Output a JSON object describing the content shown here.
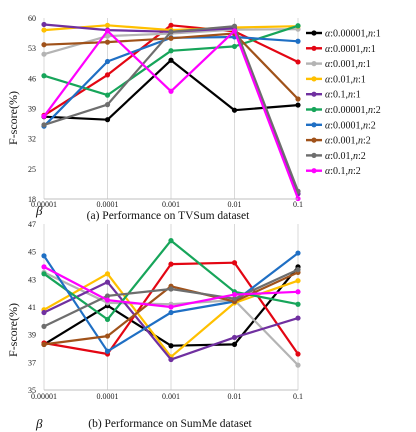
{
  "chart_data": [
    {
      "type": "line",
      "caption": "(a) Performance on TVSum dataset",
      "ylabel": "F-score(%)",
      "x_symbol": "β",
      "x": [
        "0.00001",
        "0.0001",
        "0.001",
        "0.01",
        "0.1"
      ],
      "yticks": [
        18,
        25,
        32,
        39,
        46,
        53,
        60
      ],
      "ylim": [
        18,
        60
      ],
      "grid": "vertical",
      "legend": "right",
      "series": [
        {
          "name": "α:0.00001,n:1",
          "color": "#000000",
          "values": [
            37.1,
            36.4,
            50.2,
            38.6,
            39.8
          ]
        },
        {
          "name": "α:0.0001,n:1",
          "color": "#e30613",
          "values": [
            37.4,
            46.8,
            58.3,
            56.9,
            49.8
          ]
        },
        {
          "name": "α:0.001,n:1",
          "color": "#b4b4b4",
          "values": [
            51.6,
            55.8,
            56.4,
            57.3,
            57.4
          ]
        },
        {
          "name": "α:0.01,n:1",
          "color": "#ffc000",
          "values": [
            57.2,
            58.3,
            57.2,
            57.8,
            58.1
          ]
        },
        {
          "name": "α:0.1,n:1",
          "color": "#7030a0",
          "values": [
            58.5,
            57.2,
            56.8,
            57.6,
            19.2
          ]
        },
        {
          "name": "α:0.00001,n:2",
          "color": "#17a55a",
          "values": [
            46.6,
            42.1,
            52.4,
            53.4,
            58.2
          ]
        },
        {
          "name": "α:0.0001,n:2",
          "color": "#1f6fc4",
          "values": [
            34.9,
            49.9,
            55.4,
            55.6,
            54.6
          ]
        },
        {
          "name": "α:0.001,n:2",
          "color": "#a0521a",
          "values": [
            53.8,
            54.4,
            55.3,
            56.4,
            41.2
          ]
        },
        {
          "name": "α:0.01,n:2",
          "color": "#6e6e6e",
          "values": [
            35.2,
            39.9,
            56.8,
            58.1,
            19.8
          ]
        },
        {
          "name": "α:0.1,n:2",
          "color": "#ff00ff",
          "values": [
            37.2,
            57.0,
            43.0,
            57.0,
            18.1
          ]
        }
      ]
    },
    {
      "type": "line",
      "caption": "(b) Performance on SumMe dataset",
      "ylabel": "F-score(%)",
      "x_symbol": "β",
      "x": [
        "0.00001",
        "0.0001",
        "0.001",
        "0.01",
        "0.1"
      ],
      "yticks": [
        35,
        37,
        39,
        41,
        43,
        45,
        47
      ],
      "ylim": [
        35,
        47
      ],
      "grid": "vertical",
      "series": [
        {
          "name": "α:0.00001,n:1",
          "color": "#000000",
          "values": [
            38.3,
            41.1,
            38.2,
            38.3,
            43.9
          ]
        },
        {
          "name": "α:0.0001,n:1",
          "color": "#e30613",
          "values": [
            38.4,
            37.6,
            44.1,
            44.2,
            37.6
          ]
        },
        {
          "name": "α:0.001,n:1",
          "color": "#b4b4b4",
          "values": [
            43.5,
            41.3,
            41.2,
            41.5,
            36.8
          ]
        },
        {
          "name": "α:0.01,n:1",
          "color": "#ffc000",
          "values": [
            40.8,
            43.4,
            37.4,
            41.3,
            42.9
          ]
        },
        {
          "name": "α:0.1,n:1",
          "color": "#7030a0",
          "values": [
            40.6,
            42.8,
            37.2,
            38.8,
            40.2
          ]
        },
        {
          "name": "α:0.00001,n:2",
          "color": "#17a55a",
          "values": [
            43.4,
            40.1,
            45.8,
            42.1,
            41.2
          ]
        },
        {
          "name": "α:0.0001,n:2",
          "color": "#1f6fc4",
          "values": [
            44.7,
            37.8,
            40.6,
            41.4,
            44.9
          ]
        },
        {
          "name": "α:0.001,n:2",
          "color": "#a0521a",
          "values": [
            38.3,
            38.9,
            42.5,
            41.4,
            43.5
          ]
        },
        {
          "name": "α:0.01,n:2",
          "color": "#6e6e6e",
          "values": [
            39.6,
            41.8,
            42.3,
            41.6,
            43.7
          ]
        },
        {
          "name": "α:0.1,n:2",
          "color": "#ff00ff",
          "values": [
            43.9,
            41.5,
            41.0,
            41.9,
            42.1
          ]
        }
      ]
    }
  ]
}
